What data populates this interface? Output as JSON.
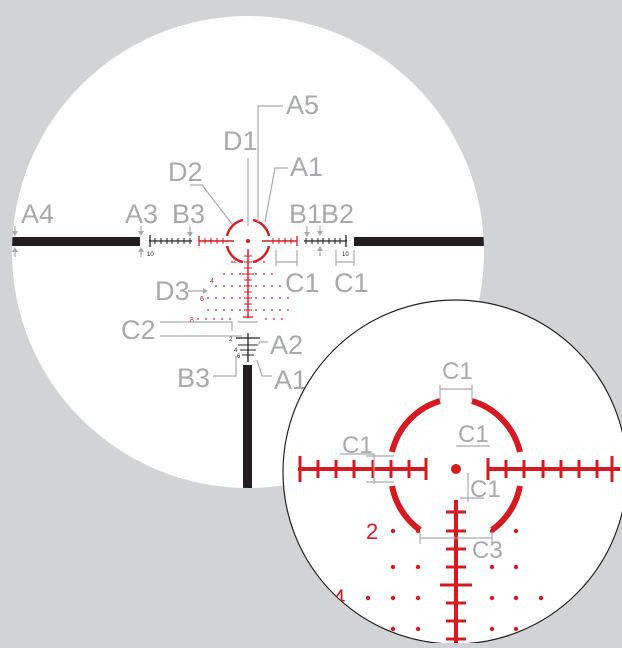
{
  "colors": {
    "background": "#d2d3d5",
    "scope_face": "#ffffff",
    "reticle_red": "#d71920",
    "post_black": "#231f20",
    "callout_gray": "#a7a9ac"
  },
  "main_callouts": {
    "a5": "A5",
    "d1": "D1",
    "a1_top": "A1",
    "d2": "D2",
    "a4": "A4",
    "a3": "A3",
    "b3_left": "B3",
    "b1": "B1",
    "b2": "B2",
    "c1_mid": "C1",
    "c1_right": "C1",
    "d3": "D3",
    "c2": "C2",
    "a2": "A2",
    "b3_bottom": "B3",
    "a1_bottom": "A1"
  },
  "main_marks": {
    "ten_left": "10",
    "ten_right": "10",
    "red_2": "2",
    "red_4": "4",
    "red_6": "6",
    "red_8": "8",
    "black_2": "2",
    "black_4": "4",
    "black_6": "6"
  },
  "zoom_callouts": {
    "c1_top": "C1",
    "c1_left": "C1",
    "c1_right": "C1",
    "c1_center": "C1",
    "c3": "C3"
  },
  "zoom_marks": {
    "red_2": "2",
    "red_4": "4"
  }
}
